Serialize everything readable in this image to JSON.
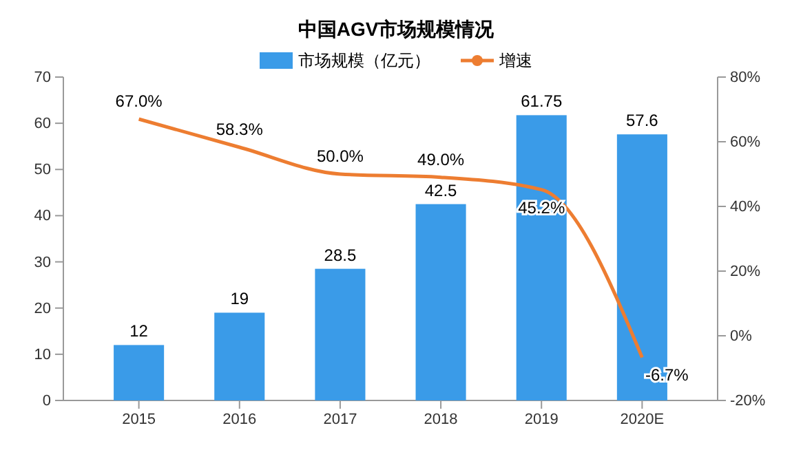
{
  "chart_data": {
    "type": "bar",
    "title": "中国AGV市场规模情况",
    "categories": [
      "2015",
      "2016",
      "2017",
      "2018",
      "2019",
      "2020E"
    ],
    "series": [
      {
        "name": "市场规模（亿元）",
        "color": "#3a9be8",
        "values": [
          12,
          19,
          28.5,
          42.5,
          61.75,
          57.6
        ],
        "value_labels": [
          "12",
          "19",
          "28.5",
          "42.5",
          "61.75",
          "57.6"
        ]
      },
      {
        "name": "增速",
        "type": "line",
        "axis": "y2",
        "color": "#ed7d31",
        "values": [
          67.0,
          58.3,
          50.0,
          49.0,
          45.2,
          -6.7
        ],
        "value_labels": [
          "67.0%",
          "58.3%",
          "50.0%",
          "49.0%",
          "45.2%",
          "-6.7%"
        ]
      }
    ],
    "ylim": [
      0,
      70
    ],
    "yticks": [
      0,
      10,
      20,
      30,
      40,
      50,
      60,
      70
    ],
    "y2lim": [
      -20,
      80
    ],
    "y2ticks": [
      {
        "value": -20,
        "label": "-20%"
      },
      {
        "value": 0,
        "label": "0%"
      },
      {
        "value": 20,
        "label": "20%"
      },
      {
        "value": 40,
        "label": "40%"
      },
      {
        "value": 60,
        "label": "60%"
      },
      {
        "value": 80,
        "label": "80%"
      }
    ],
    "legend": "top",
    "marker": "none"
  }
}
